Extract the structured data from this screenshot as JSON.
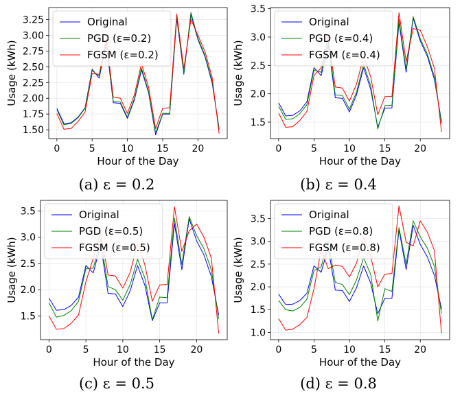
{
  "chart_data": [
    {
      "type": "line",
      "caption": "(a) ε = 0.2",
      "xlabel": "Hour of the Day",
      "ylabel": "Usage (kWh)",
      "x": [
        0,
        1,
        2,
        3,
        4,
        5,
        6,
        7,
        8,
        9,
        10,
        11,
        12,
        13,
        14,
        15,
        16,
        17,
        18,
        19,
        20,
        21,
        22,
        23
      ],
      "xticks": [
        0,
        5,
        10,
        15,
        20
      ],
      "yticks": [
        1.5,
        1.75,
        2.0,
        2.25,
        2.5,
        2.75,
        3.0,
        3.25
      ],
      "ytick_labels": [
        "1.50",
        "1.75",
        "2.00",
        "2.25",
        "2.50",
        "2.75",
        "3.00",
        "3.25"
      ],
      "xlim": [
        -1.15,
        24.15
      ],
      "ylim": [
        1.36,
        3.44
      ],
      "grid": true,
      "legend": "upper left",
      "series": [
        {
          "name": "Original",
          "color": "#0000ff",
          "values": [
            1.84,
            1.6,
            1.61,
            1.7,
            1.85,
            2.46,
            2.32,
            2.87,
            1.93,
            1.92,
            1.68,
            1.98,
            2.45,
            2.09,
            1.42,
            1.75,
            1.75,
            3.27,
            2.38,
            3.33,
            2.93,
            2.66,
            2.25,
            1.52
          ]
        },
        {
          "name": "PGD (ε=0.2)",
          "color": "#008000",
          "values": [
            1.82,
            1.58,
            1.6,
            1.69,
            1.84,
            2.44,
            2.35,
            2.9,
            1.95,
            1.94,
            1.7,
            2.0,
            2.48,
            2.11,
            1.45,
            1.76,
            1.76,
            3.3,
            2.4,
            3.36,
            2.95,
            2.68,
            2.28,
            1.5
          ]
        },
        {
          "name": "FGSM (ε=0.2)",
          "color": "#ff0000",
          "values": [
            1.76,
            1.51,
            1.52,
            1.63,
            1.78,
            2.39,
            2.38,
            2.95,
            2.02,
            2.0,
            1.76,
            2.06,
            2.55,
            2.18,
            1.52,
            1.84,
            1.85,
            3.34,
            2.47,
            3.25,
            3.0,
            2.74,
            2.34,
            1.44
          ]
        }
      ]
    },
    {
      "type": "line",
      "caption": "(b) ε = 0.4",
      "xlabel": "Hour of the Day",
      "ylabel": "Usage (kWh)",
      "x": [
        0,
        1,
        2,
        3,
        4,
        5,
        6,
        7,
        8,
        9,
        10,
        11,
        12,
        13,
        14,
        15,
        16,
        17,
        18,
        19,
        20,
        21,
        22,
        23
      ],
      "xticks": [
        0,
        5,
        10,
        15,
        20
      ],
      "yticks": [
        1.5,
        2.0,
        2.5,
        3.0,
        3.5
      ],
      "ytick_labels": [
        "1.5",
        "2.0",
        "2.5",
        "3.0",
        "3.5"
      ],
      "xlim": [
        -1.15,
        24.15
      ],
      "ylim": [
        1.21,
        3.52
      ],
      "grid": true,
      "legend": "upper left",
      "series": [
        {
          "name": "Original",
          "color": "#0000ff",
          "values": [
            1.84,
            1.61,
            1.62,
            1.7,
            1.86,
            2.46,
            2.32,
            2.86,
            1.93,
            1.92,
            1.68,
            1.98,
            2.46,
            2.08,
            1.41,
            1.75,
            1.75,
            3.26,
            2.38,
            3.33,
            2.93,
            2.66,
            2.25,
            1.52
          ]
        },
        {
          "name": "PGD (ε=0.4)",
          "color": "#008000",
          "values": [
            1.78,
            1.55,
            1.56,
            1.65,
            1.81,
            2.42,
            2.38,
            2.92,
            1.98,
            1.97,
            1.73,
            2.03,
            2.52,
            2.14,
            1.38,
            1.79,
            1.8,
            3.31,
            2.43,
            3.36,
            2.97,
            2.7,
            2.3,
            1.48
          ]
        },
        {
          "name": "FGSM (ε=0.4)",
          "color": "#ff0000",
          "values": [
            1.66,
            1.41,
            1.42,
            1.53,
            1.69,
            2.32,
            2.46,
            3.02,
            2.12,
            2.1,
            1.87,
            2.17,
            2.66,
            2.3,
            1.63,
            1.95,
            1.95,
            3.43,
            2.57,
            3.15,
            3.12,
            2.83,
            2.45,
            1.33
          ]
        }
      ]
    },
    {
      "type": "line",
      "caption": "(c) ε = 0.5",
      "xlabel": "Hour of the Day",
      "ylabel": "Usage (kWh)",
      "x": [
        0,
        1,
        2,
        3,
        4,
        5,
        6,
        7,
        8,
        9,
        10,
        11,
        12,
        13,
        14,
        15,
        16,
        17,
        18,
        19,
        20,
        21,
        22,
        23
      ],
      "xticks": [
        0,
        5,
        10,
        15,
        20
      ],
      "yticks": [
        1.5,
        2.0,
        2.5,
        3.0,
        3.5
      ],
      "ytick_labels": [
        "1.5",
        "2.0",
        "2.5",
        "3.0",
        "3.5"
      ],
      "xlim": [
        -1.15,
        24.15
      ],
      "ylim": [
        1.05,
        3.7
      ],
      "grid": true,
      "legend": "upper left",
      "series": [
        {
          "name": "Original",
          "color": "#0000ff",
          "values": [
            1.84,
            1.61,
            1.62,
            1.7,
            1.86,
            2.46,
            2.32,
            2.86,
            1.93,
            1.92,
            1.68,
            1.98,
            2.46,
            2.08,
            1.41,
            1.75,
            1.75,
            3.26,
            2.38,
            3.35,
            2.93,
            2.66,
            2.25,
            1.52
          ]
        },
        {
          "name": "PGD (ε=0.5)",
          "color": "#008000",
          "values": [
            1.75,
            1.48,
            1.51,
            1.6,
            1.78,
            2.4,
            2.41,
            2.96,
            2.06,
            2.0,
            1.8,
            2.1,
            2.58,
            2.22,
            1.43,
            1.86,
            1.85,
            3.36,
            2.48,
            3.39,
            3.03,
            2.78,
            2.38,
            1.45
          ]
        },
        {
          "name": "FGSM (ε=0.5)",
          "color": "#ff0000",
          "values": [
            1.5,
            1.25,
            1.26,
            1.36,
            1.52,
            2.15,
            2.6,
            3.1,
            2.28,
            2.26,
            2.03,
            2.33,
            2.88,
            2.47,
            1.78,
            2.09,
            2.1,
            3.58,
            2.73,
            3.12,
            3.25,
            3.0,
            2.6,
            1.17
          ]
        }
      ]
    },
    {
      "type": "line",
      "caption": "(d) ε = 0.8",
      "xlabel": "Hour of the Day",
      "ylabel": "Usage (kWh)",
      "x": [
        0,
        1,
        2,
        3,
        4,
        5,
        6,
        7,
        8,
        9,
        10,
        11,
        12,
        13,
        14,
        15,
        16,
        17,
        18,
        19,
        20,
        21,
        22,
        23
      ],
      "xticks": [
        0,
        5,
        10,
        15,
        20
      ],
      "yticks": [
        1.0,
        1.5,
        2.0,
        2.5,
        3.0,
        3.5
      ],
      "ytick_labels": [
        "1.0",
        "1.5",
        "2.0",
        "2.5",
        "3.0",
        "3.5"
      ],
      "xlim": [
        -1.15,
        24.15
      ],
      "ylim": [
        0.84,
        3.9
      ],
      "grid": true,
      "legend": "upper left",
      "series": [
        {
          "name": "Original",
          "color": "#0000ff",
          "values": [
            1.84,
            1.61,
            1.62,
            1.7,
            1.86,
            2.46,
            2.32,
            2.86,
            1.93,
            1.92,
            1.68,
            1.98,
            2.46,
            2.08,
            1.41,
            1.75,
            1.75,
            3.26,
            2.38,
            3.35,
            2.93,
            2.66,
            2.25,
            1.52
          ]
        },
        {
          "name": "PGD (ε=0.8)",
          "color": "#008000",
          "values": [
            1.7,
            1.5,
            1.47,
            1.55,
            1.73,
            2.36,
            2.44,
            3.0,
            2.1,
            2.05,
            1.83,
            2.15,
            2.64,
            2.27,
            1.25,
            1.96,
            1.9,
            3.3,
            2.5,
            3.45,
            3.1,
            2.85,
            2.45,
            1.41
          ]
        },
        {
          "name": "FGSM (ε=0.8)",
          "color": "#ff0000",
          "values": [
            1.3,
            1.05,
            1.07,
            1.17,
            1.33,
            1.96,
            2.82,
            2.4,
            2.48,
            2.45,
            2.22,
            2.52,
            3.09,
            2.67,
            2.0,
            2.28,
            2.29,
            3.78,
            2.98,
            2.9,
            3.45,
            3.2,
            2.8,
            0.98
          ]
        }
      ]
    }
  ]
}
